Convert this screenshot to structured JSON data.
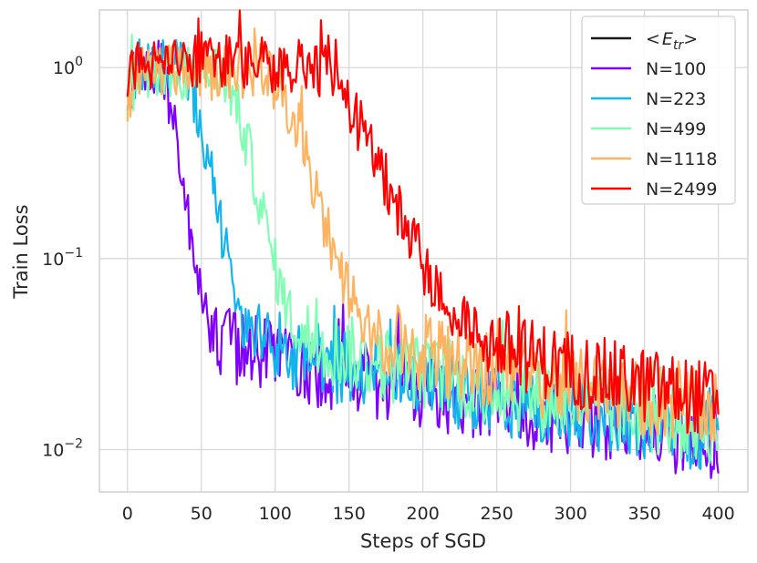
{
  "chart_data": {
    "type": "line",
    "xlabel": "Steps of SGD",
    "ylabel": "Train Loss",
    "yscale": "log",
    "xlim": [
      -19,
      420
    ],
    "ylim": [
      0.006,
      2.0
    ],
    "x_ticks": [
      0,
      50,
      100,
      150,
      200,
      250,
      300,
      350,
      400
    ],
    "y_ticks": [
      {
        "value": 1.0,
        "base": "10",
        "exp": "0"
      },
      {
        "value": 0.1,
        "base": "10",
        "exp": "−1"
      },
      {
        "value": 0.01,
        "base": "10",
        "exp": "−2"
      }
    ],
    "grid": true,
    "legend_position": "top-right",
    "legend_mean_label": {
      "open": "<",
      "symbol": "E",
      "sub": "tr",
      "close": ">"
    },
    "series": [
      {
        "name": "<Etr>",
        "color": "#1a1a1a",
        "legend_only": true
      },
      {
        "name": "N=100",
        "color": "#8000ff",
        "plateau": 1.0,
        "decay_start": 20,
        "decay_end": 60,
        "tail_end": 0.011,
        "noise": 0.15
      },
      {
        "name": "N=223",
        "color": "#12b5eb",
        "plateau": 1.0,
        "decay_start": 35,
        "decay_end": 85,
        "tail_end": 0.012,
        "noise": 0.15
      },
      {
        "name": "N=499",
        "color": "#80ffb4",
        "plateau": 0.95,
        "decay_start": 60,
        "decay_end": 120,
        "tail_end": 0.013,
        "noise": 0.15
      },
      {
        "name": "N=1118",
        "color": "#ffb360",
        "plateau": 0.95,
        "decay_start": 90,
        "decay_end": 170,
        "tail_end": 0.016,
        "noise": 0.15
      },
      {
        "name": "N=2499",
        "color": "#ff0000",
        "plateau": 1.05,
        "decay_start": 120,
        "decay_end": 240,
        "tail_end": 0.018,
        "noise": 0.15
      }
    ]
  }
}
